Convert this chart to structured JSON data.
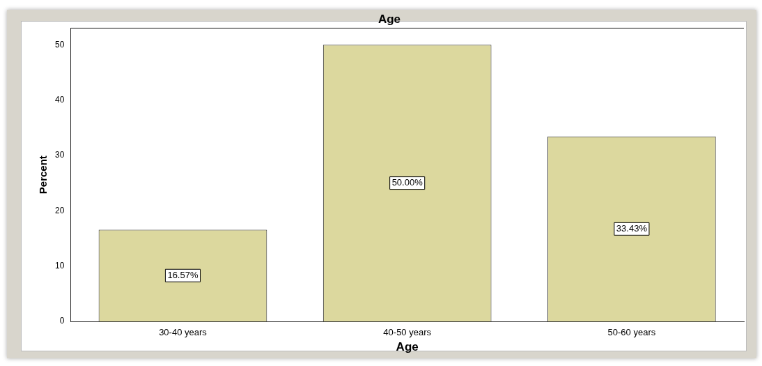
{
  "chart_data": {
    "type": "bar",
    "title": "Age",
    "xlabel": "Age",
    "ylabel": "Percent",
    "categories": [
      "30-40 years",
      "40-50 years",
      "50-60 years"
    ],
    "values": [
      16.57,
      50.0,
      33.43
    ],
    "value_labels": [
      "16.57%",
      "50.00%",
      "33.43%"
    ],
    "color": "#dcd89e",
    "ylim": [
      0,
      53
    ],
    "yticks": [
      0,
      10,
      20,
      30,
      40,
      50
    ],
    "grid": false,
    "legend": false
  }
}
